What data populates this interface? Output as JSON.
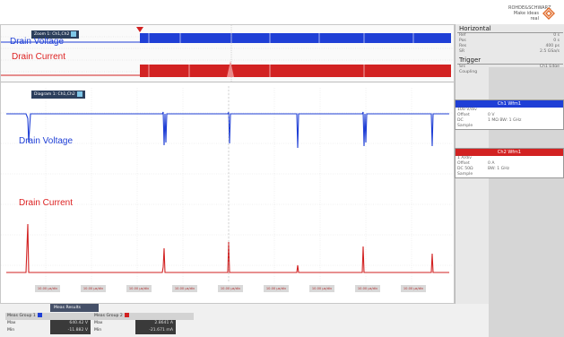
{
  "logo": {
    "line1": "ROHDE&SCHWARZ",
    "line2": "Make ideas real",
    "name": "rohde-schwarz-logo"
  },
  "zoom": {
    "title": "Zoom 1: Ch1,Ch2"
  },
  "main": {
    "title": "Diagram 1: Ch1,Ch2"
  },
  "labels": {
    "zoom_voltage": "Drain Voltage",
    "zoom_current": "Drain Current",
    "main_voltage": "Drain Voltage",
    "main_current": "Drain Current"
  },
  "xticks": [
    "10.00 µs/div",
    "10.00 µs/div",
    "10.00 µs/div",
    "10.00 µs/div",
    "10.00 µs/div",
    "10.00 µs/div",
    "10.00 µs/div",
    "10.00 µs/div",
    "10.00 µs/div"
  ],
  "horizontal": {
    "title": "Horizontal",
    "rows": [
      [
        "Ref",
        "0 s"
      ],
      [
        "Pos",
        "0 s"
      ],
      [
        "Res",
        "400 ps"
      ],
      [
        "SR",
        "2.5 GSa/s"
      ]
    ]
  },
  "trigger": {
    "title": "Trigger",
    "rows": [
      [
        "Src",
        "Ch1 Edge"
      ],
      [
        "Coupling",
        "DC Norm"
      ]
    ]
  },
  "ch1": {
    "title": "Ch1 Wfm1",
    "rows": [
      [
        "100 V/div",
        ""
      ],
      [
        "Offset",
        "0 V"
      ],
      [
        "DC",
        "1 MΩ BW: 1 GHz"
      ],
      [
        "Sample",
        ""
      ]
    ]
  },
  "ch2": {
    "title": "Ch2 Wfm1",
    "rows": [
      [
        "1 A/div",
        ""
      ],
      [
        "Offset",
        "0 A"
      ],
      [
        "DC 50Ω",
        "BW: 1 GHz"
      ],
      [
        "Sample",
        ""
      ]
    ]
  },
  "measure": {
    "tab": "Meas Results",
    "header": [
      "Meas Group 1",
      "",
      "Meas Group 2",
      ""
    ],
    "rows": [
      [
        "Max",
        "640.42 V",
        "Max",
        "2.8641 A"
      ],
      [
        "Min",
        "-11.882 V",
        "Min",
        "-21.671 mA"
      ]
    ]
  },
  "colors": {
    "ch1": "#1f3fd6",
    "ch2": "#d22222",
    "panel_ch1": "#1f3fd6",
    "panel_ch2": "#d22222"
  }
}
